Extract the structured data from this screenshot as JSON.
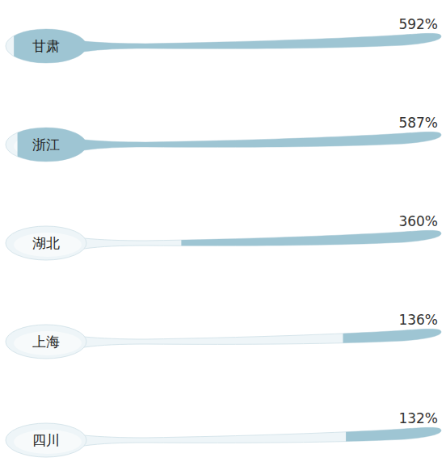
{
  "chart_data": {
    "type": "bar",
    "orientation": "horizontal",
    "categories": [
      "甘肃",
      "浙江",
      "湖北",
      "上海",
      "四川"
    ],
    "values": [
      592,
      587,
      360,
      136,
      132
    ],
    "value_labels": [
      "592%",
      "587%",
      "360%",
      "136%",
      "132%"
    ],
    "xlim": [
      0,
      600
    ],
    "color": "#9ec5d3",
    "data_labels": true,
    "tick_labels": false
  }
}
